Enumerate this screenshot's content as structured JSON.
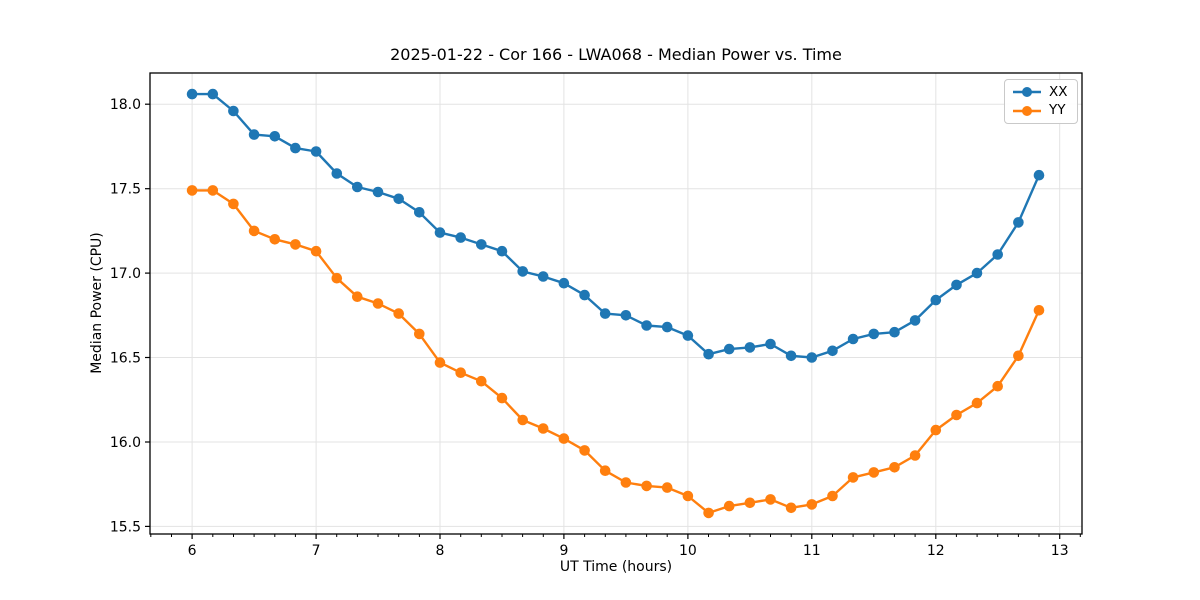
{
  "chart_data": {
    "type": "line",
    "title": "2025-01-22 - Cor 166 - LWA068 - Median Power vs. Time",
    "xlabel": "UT Time (hours)",
    "ylabel": "Median Power (CPU)",
    "xlim": [
      5.66,
      13.18
    ],
    "ylim": [
      15.455,
      18.185
    ],
    "grid": true,
    "legend_position": "top-right",
    "axis_color": "#000000",
    "grid_color": "#e3e3e3",
    "xticks": {
      "values": [
        6,
        7,
        8,
        9,
        10,
        11,
        12,
        13
      ],
      "labels": [
        "6",
        "7",
        "8",
        "9",
        "10",
        "11",
        "12",
        "13"
      ],
      "minor_ticks_per_unit": 6
    },
    "yticks": {
      "values": [
        15.5,
        16.0,
        16.5,
        17.0,
        17.5,
        18.0
      ],
      "labels": [
        "15.5",
        "16.0",
        "16.5",
        "17.0",
        "17.5",
        "18.0"
      ]
    },
    "x": [
      6.0,
      6.167,
      6.333,
      6.5,
      6.667,
      6.833,
      7.0,
      7.167,
      7.333,
      7.5,
      7.667,
      7.833,
      8.0,
      8.167,
      8.333,
      8.5,
      8.667,
      8.833,
      9.0,
      9.167,
      9.333,
      9.5,
      9.667,
      9.833,
      10.0,
      10.167,
      10.333,
      10.5,
      10.667,
      10.833,
      11.0,
      11.167,
      11.333,
      11.5,
      11.667,
      11.833,
      12.0,
      12.167,
      12.333,
      12.5,
      12.667,
      12.833
    ],
    "series": [
      {
        "name": "XX",
        "color": "#1f77b4",
        "values": [
          18.06,
          18.06,
          17.96,
          17.82,
          17.81,
          17.74,
          17.72,
          17.59,
          17.51,
          17.48,
          17.44,
          17.36,
          17.24,
          17.21,
          17.17,
          17.13,
          17.01,
          16.98,
          16.94,
          16.87,
          16.76,
          16.75,
          16.69,
          16.68,
          16.63,
          16.52,
          16.55,
          16.56,
          16.58,
          16.51,
          16.5,
          16.54,
          16.61,
          16.64,
          16.65,
          16.72,
          16.84,
          16.93,
          17.0,
          17.11,
          17.3,
          17.58
        ]
      },
      {
        "name": "YY",
        "color": "#ff7f0e",
        "values": [
          17.49,
          17.49,
          17.41,
          17.25,
          17.2,
          17.17,
          17.13,
          16.97,
          16.86,
          16.82,
          16.76,
          16.64,
          16.47,
          16.41,
          16.36,
          16.26,
          16.13,
          16.08,
          16.02,
          15.95,
          15.83,
          15.76,
          15.74,
          15.73,
          15.68,
          15.58,
          15.62,
          15.64,
          15.66,
          15.61,
          15.63,
          15.68,
          15.79,
          15.82,
          15.85,
          15.92,
          16.07,
          16.16,
          16.23,
          16.33,
          16.51,
          16.78
        ]
      }
    ]
  }
}
